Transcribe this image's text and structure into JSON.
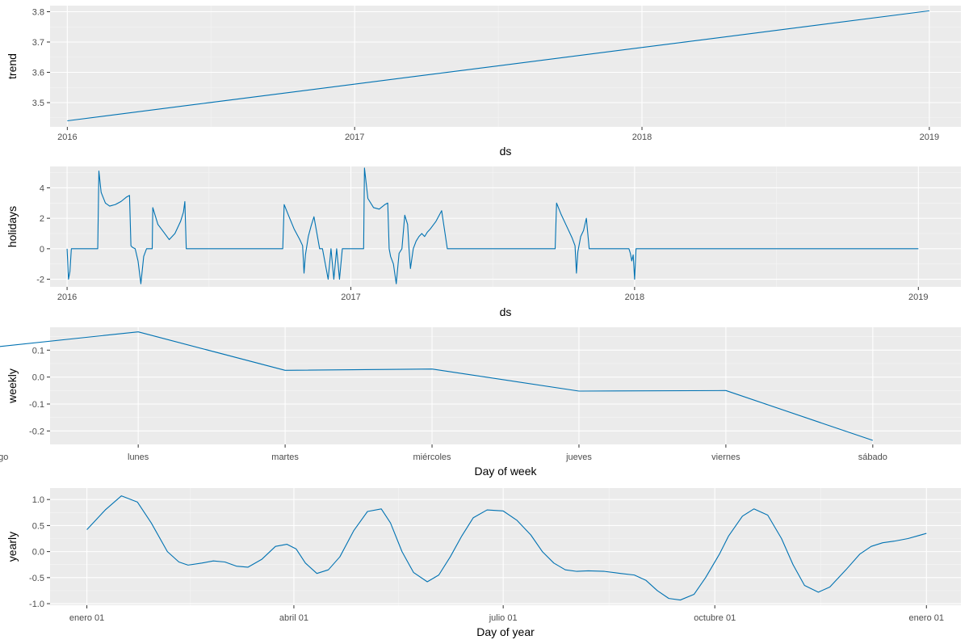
{
  "colors": {
    "panel_background": "#ebebeb",
    "grid_major": "#ffffff",
    "grid_minor": "#f5f5f5",
    "line": "#0072b2",
    "tick_label": "#4d4d4d",
    "axis_title": "#000000"
  },
  "chart_data": [
    {
      "type": "line",
      "xlabel": "ds",
      "ylabel": "trend",
      "xlim": [
        2015.94,
        2019.11
      ],
      "ylim": [
        3.42,
        3.82
      ],
      "x_ticks": [
        2016,
        2017,
        2018,
        2019
      ],
      "x_tick_labels": [
        "2016",
        "2017",
        "2018",
        "2019"
      ],
      "x_minor_ticks": [
        2016.5,
        2017.5,
        2018.5
      ],
      "y_ticks": [
        3.5,
        3.6,
        3.7,
        3.8
      ],
      "y_tick_labels": [
        "3.5",
        "3.6",
        "3.7",
        "3.8"
      ],
      "x": [
        2016.0,
        2019.0
      ],
      "y": [
        3.44,
        3.803
      ]
    },
    {
      "type": "line",
      "xlabel": "ds",
      "ylabel": "holidays",
      "xlim": [
        2015.94,
        2019.15
      ],
      "ylim": [
        -2.5,
        5.4
      ],
      "x_ticks": [
        2016,
        2017,
        2018,
        2019
      ],
      "x_tick_labels": [
        "2016",
        "2017",
        "2018",
        "2019"
      ],
      "x_minor_ticks": [
        2016.5,
        2017.5,
        2018.5
      ],
      "y_ticks": [
        -2,
        0,
        2,
        4
      ],
      "y_tick_labels": [
        "-2",
        "0",
        "2",
        "4"
      ],
      "x": [
        2016.0,
        2016.005,
        2016.01,
        2016.015,
        2016.02,
        2016.108,
        2016.112,
        2016.12,
        2016.135,
        2016.15,
        2016.17,
        2016.19,
        2016.21,
        2016.22,
        2016.225,
        2016.23,
        2016.24,
        2016.25,
        2016.26,
        2016.27,
        2016.28,
        2016.29,
        2016.3,
        2016.302,
        2016.32,
        2016.34,
        2016.36,
        2016.38,
        2016.4,
        2016.41,
        2016.415,
        2016.42,
        2016.76,
        2016.765,
        2016.78,
        2016.8,
        2016.82,
        2016.83,
        2016.835,
        2016.84,
        2016.85,
        2016.86,
        2016.87,
        2016.89,
        2016.9,
        2016.92,
        2016.93,
        2016.94,
        2016.95,
        2016.96,
        2016.97,
        2016.98,
        2016.99,
        2017.015,
        2017.045,
        2017.048,
        2017.06,
        2017.08,
        2017.1,
        2017.12,
        2017.13,
        2017.135,
        2017.14,
        2017.15,
        2017.16,
        2017.17,
        2017.18,
        2017.19,
        2017.2,
        2017.205,
        2017.21,
        2017.22,
        2017.23,
        2017.24,
        2017.25,
        2017.26,
        2017.27,
        2017.28,
        2017.3,
        2017.32,
        2017.34,
        2017.36,
        2017.37,
        2017.375,
        2017.38,
        2017.72,
        2017.725,
        2017.74,
        2017.76,
        2017.78,
        2017.79,
        2017.795,
        2017.8,
        2017.81,
        2017.82,
        2017.83,
        2017.84,
        2017.85,
        2017.86,
        2017.87,
        2017.98,
        2017.985,
        2017.99,
        2017.995,
        2018.0,
        2018.005,
        2019.0
      ],
      "y": [
        0.0,
        -2.0,
        -1.5,
        0.0,
        0.0,
        0.0,
        5.1,
        3.7,
        3.0,
        2.8,
        2.9,
        3.1,
        3.4,
        3.5,
        0.2,
        0.1,
        0.0,
        -0.8,
        -2.3,
        -0.5,
        0.0,
        0.0,
        0.0,
        2.7,
        1.6,
        1.1,
        0.6,
        1.0,
        1.8,
        2.4,
        3.1,
        0.0,
        0.0,
        2.9,
        2.2,
        1.3,
        0.6,
        0.2,
        -1.6,
        -0.4,
        0.8,
        1.5,
        2.1,
        0.0,
        0.0,
        -2.0,
        0.0,
        -2.0,
        0.0,
        -2.0,
        0.0,
        0.0,
        0.0,
        0.0,
        0.0,
        5.3,
        3.3,
        2.7,
        2.6,
        2.9,
        3.0,
        0.0,
        -0.5,
        -1.0,
        -2.3,
        -0.3,
        0.0,
        2.2,
        1.6,
        0.0,
        -1.3,
        0.0,
        0.5,
        0.8,
        1.0,
        0.8,
        1.1,
        1.3,
        1.8,
        2.5,
        0.0,
        0.0,
        0.0,
        0.0,
        0.0,
        0.0,
        3.0,
        2.3,
        1.5,
        0.7,
        0.2,
        -1.6,
        -0.2,
        0.8,
        1.2,
        2.0,
        0.0,
        0.0,
        0.0,
        0.0,
        0.0,
        -0.3,
        -0.8,
        -0.4,
        -2.0,
        0.0,
        0.0
      ]
    },
    {
      "type": "line",
      "xlabel": "Day of week",
      "ylabel": "weekly",
      "ylim": [
        -0.25,
        0.185
      ],
      "categories": [
        "domingo",
        "lunes",
        "martes",
        "miércoles",
        "jueves",
        "viernes",
        "sábado"
      ],
      "y_ticks": [
        -0.2,
        -0.1,
        0.0,
        0.1
      ],
      "y_tick_labels": [
        "-0.2",
        "-0.1",
        "0.0",
        "0.1"
      ],
      "values": [
        0.11,
        0.168,
        0.025,
        0.03,
        -0.052,
        -0.05,
        -0.235
      ]
    },
    {
      "type": "line",
      "xlabel": "Day of year",
      "ylabel": "yearly",
      "xlim": [
        -16,
        380
      ],
      "ylim": [
        -1.03,
        1.22
      ],
      "x_ticks": [
        0,
        90,
        181,
        273,
        365
      ],
      "x_tick_labels": [
        "enero 01",
        "abril 01",
        "julio 01",
        "octubre 01",
        "enero 01"
      ],
      "x_minor_ticks": [
        45,
        135.5,
        227,
        319
      ],
      "y_ticks": [
        -1.0,
        -0.5,
        0.0,
        0.5,
        1.0
      ],
      "y_tick_labels": [
        "-1.0",
        "-0.5",
        "0.0",
        "0.5",
        "1.0"
      ],
      "x": [
        0,
        8,
        15,
        22,
        28,
        35,
        40,
        44,
        50,
        55,
        60,
        65,
        70,
        76,
        82,
        87,
        91,
        95,
        100,
        105,
        110,
        116,
        122,
        128,
        132,
        137,
        142,
        148,
        153,
        158,
        163,
        168,
        174,
        181,
        187,
        193,
        198,
        203,
        208,
        213,
        218,
        225,
        232,
        238,
        243,
        248,
        253,
        258,
        264,
        269,
        275,
        279,
        285,
        290,
        296,
        302,
        307,
        312,
        318,
        323,
        330,
        336,
        341,
        346,
        351,
        357,
        361,
        365
      ],
      "y": [
        0.42,
        0.8,
        1.07,
        0.95,
        0.55,
        0.0,
        -0.2,
        -0.26,
        -0.22,
        -0.18,
        -0.2,
        -0.28,
        -0.3,
        -0.15,
        0.1,
        0.14,
        0.05,
        -0.22,
        -0.42,
        -0.35,
        -0.1,
        0.4,
        0.77,
        0.82,
        0.55,
        0.0,
        -0.4,
        -0.58,
        -0.45,
        -0.1,
        0.3,
        0.65,
        0.8,
        0.78,
        0.6,
        0.32,
        0.0,
        -0.22,
        -0.35,
        -0.38,
        -0.37,
        -0.38,
        -0.42,
        -0.45,
        -0.55,
        -0.75,
        -0.9,
        -0.93,
        -0.82,
        -0.5,
        -0.05,
        0.3,
        0.68,
        0.82,
        0.7,
        0.25,
        -0.25,
        -0.65,
        -0.78,
        -0.68,
        -0.35,
        -0.05,
        0.1,
        0.17,
        0.2,
        0.25,
        0.3,
        0.35
      ]
    }
  ]
}
